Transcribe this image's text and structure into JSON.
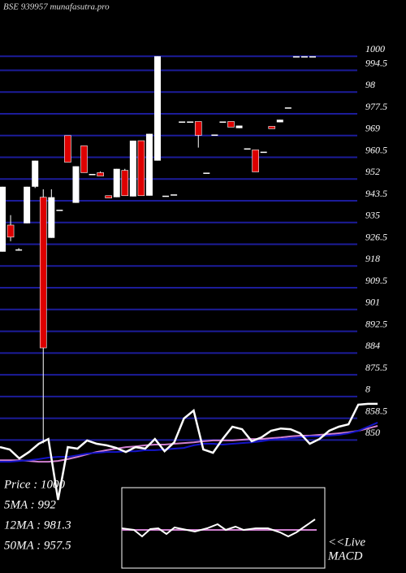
{
  "chart_data": {
    "type": "candlestick",
    "title": "BSE 939957 munafasutra.pro",
    "ylim": [
      825,
      1022
    ],
    "yticks": [
      1000,
      994.5,
      {
        "value": 986,
        "label": "98"
      },
      977.5,
      969,
      960.5,
      952,
      943.5,
      935,
      926.5,
      918,
      909.5,
      901,
      892.5,
      884,
      875.5,
      {
        "value": 867,
        "label": "8"
      },
      858.5,
      850
    ],
    "grid": true,
    "grid_color": "#1c1c9a",
    "up_color": "#ffffff",
    "down_color": "#dd0000",
    "open": [
      923.6,
      934,
      924.5,
      934.7,
      949,
      944.9,
      929,
      940,
      969,
      942.7,
      965,
      954,
      954.5,
      945.5,
      944.9,
      955.4,
      945.2,
      967,
      945.5,
      959.2,
      945.5,
      946,
      974.5,
      974.5,
      974.5,
      954.5,
      969.4,
      974.5,
      974.5,
      971.9,
      964,
      963.4,
      962.7,
      972.6,
      974.2,
      980,
      1000,
      1000,
      1000
    ],
    "high": [
      949,
      937.9,
      925,
      949,
      959.2,
      948,
      948,
      940,
      969,
      957,
      965,
      954,
      955,
      945.5,
      956,
      956,
      967,
      967,
      969.7,
      1000,
      945.5,
      946,
      974.5,
      974.5,
      974.5,
      954.5,
      969.4,
      974.5,
      974.5,
      972.9,
      964,
      963.4,
      962.7,
      972.6,
      975.2,
      980,
      1000,
      1000,
      1000
    ],
    "low": [
      923.6,
      927.7,
      924,
      934.7,
      948.5,
      848.7,
      929,
      940,
      958.6,
      942.7,
      954.5,
      954,
      953.2,
      944.6,
      944.9,
      945.5,
      945.2,
      945.5,
      945.5,
      959.2,
      945.5,
      946,
      974.5,
      974.5,
      964.3,
      954.5,
      969.4,
      974.5,
      972.3,
      971.9,
      964,
      954.8,
      962.7,
      971.7,
      974.2,
      980,
      1000,
      1000,
      1000
    ],
    "close": [
      949,
      929.3,
      924.5,
      949,
      959.2,
      886,
      944.9,
      940,
      958.6,
      957,
      954.5,
      954,
      953.2,
      944.6,
      956,
      945.5,
      967,
      945.5,
      969.7,
      1000,
      945.5,
      946,
      974.5,
      974.5,
      969.1,
      954.5,
      969.4,
      974.5,
      972.3,
      972.9,
      964,
      954.8,
      962.7,
      971.7,
      975.2,
      980,
      1000,
      1000,
      1000
    ],
    "lines": [
      {
        "color": "#d080d0",
        "values": [
          842.1,
          842.1,
          842.1,
          841.8,
          841.5,
          841.5,
          841.8,
          842.5,
          843.4,
          844.4,
          845.3,
          846.0,
          846.6,
          847.2,
          847.5,
          847.9,
          848.2,
          848.2,
          848.5,
          848.8,
          849.1,
          849.5,
          849.8,
          849.8,
          849.8,
          850.1,
          850.4,
          850.4,
          850.7,
          851.0,
          851.4,
          851.7,
          851.7,
          852.0,
          852.3,
          852.6,
          853.0,
          853.6,
          854.5,
          855.5
        ]
      },
      {
        "color": "#1414c8",
        "values": [
          841.5,
          841.5,
          841.8,
          842.1,
          842.5,
          843.1,
          843.4,
          843.4,
          844.0,
          844.7,
          845.0,
          845.3,
          845.3,
          845.6,
          845.6,
          846.0,
          846.0,
          846.3,
          846.6,
          846.9,
          847.9,
          848.5,
          848.5,
          848.2,
          848.5,
          848.8,
          849.1,
          849.5,
          850.1,
          850.4,
          850.7,
          851.0,
          851.4,
          851.4,
          851.7,
          852.0,
          852.6,
          853.6,
          855.2,
          856.8
        ]
      },
      {
        "color": "#ffffff",
        "values": [
          847.2,
          846.3,
          842.8,
          845.3,
          848.5,
          850.4,
          826.6,
          847.2,
          846.6,
          849.8,
          848.5,
          847.9,
          846.9,
          845.3,
          847.2,
          846.6,
          850.4,
          845.6,
          849.1,
          858.4,
          861.5,
          846.3,
          845.0,
          850.4,
          855.2,
          854.2,
          849.5,
          851.0,
          853.6,
          854.5,
          854.2,
          852.6,
          848.5,
          850.4,
          853.6,
          855.2,
          856.1,
          863.8,
          864.1,
          864.1
        ]
      }
    ],
    "info": [
      "Price  : 1000",
      "5MA : 992",
      "12MA : 981.3",
      "50MA : 957.5"
    ],
    "macd_label": [
      "<<Live",
      "MACD"
    ]
  }
}
